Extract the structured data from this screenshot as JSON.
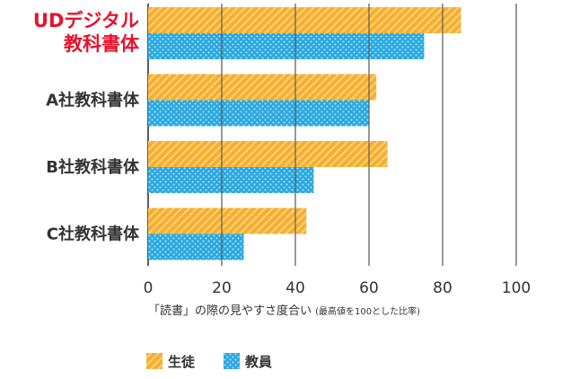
{
  "chart_data": {
    "type": "bar",
    "orientation": "horizontal",
    "categories": [
      [
        "UDデジタル",
        "教科書体"
      ],
      [
        "A社教科書体"
      ],
      [
        "B社教科書体"
      ],
      [
        "C社教科書体"
      ]
    ],
    "highlight_category": 0,
    "series": [
      {
        "name": "生徒",
        "values": [
          85,
          62,
          65,
          43
        ],
        "color": "#f6ae2d"
      },
      {
        "name": "教員",
        "values": [
          75,
          60,
          45,
          26
        ],
        "color": "#29a8e0"
      }
    ],
    "xlim": [
      0,
      100
    ],
    "xticks": [
      0,
      20,
      40,
      60,
      80,
      100
    ],
    "grid": true,
    "xlabel_main": "「読書」の際の見やすさ度合い",
    "xlabel_note": "(最高値を100とした比率)",
    "legend_position": "bottom-left",
    "highlight_color": "#e8112d"
  }
}
